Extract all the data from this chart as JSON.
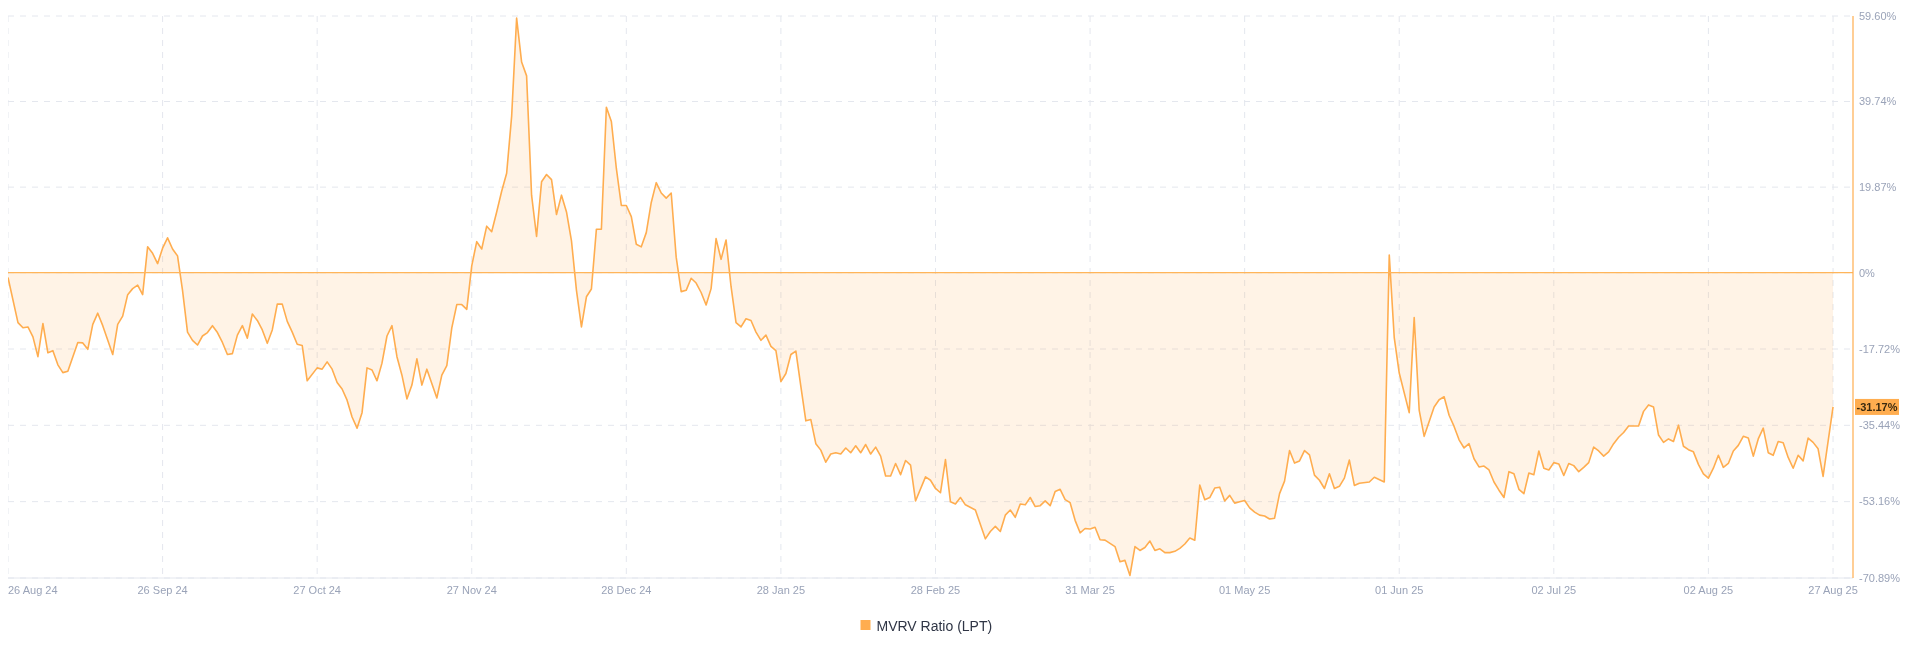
{
  "chart_data": {
    "type": "area",
    "xlim": [
      "2024-08-26",
      "2025-08-31"
    ],
    "xticks": [
      {
        "value": "2024-08-26",
        "label": "26 Aug 24"
      },
      {
        "value": "2024-09-26",
        "label": "26 Sep 24"
      },
      {
        "value": "2024-10-27",
        "label": "27 Oct 24"
      },
      {
        "value": "2024-11-27",
        "label": "27 Nov 24"
      },
      {
        "value": "2024-12-28",
        "label": "28 Dec 24"
      },
      {
        "value": "2025-01-28",
        "label": "28 Jan 25"
      },
      {
        "value": "2025-02-28",
        "label": "28 Feb 25"
      },
      {
        "value": "2025-03-31",
        "label": "31 Mar 25"
      },
      {
        "value": "2025-05-01",
        "label": "01 May 25"
      },
      {
        "value": "2025-06-01",
        "label": "01 Jun 25"
      },
      {
        "value": "2025-07-02",
        "label": "02 Jul 25"
      },
      {
        "value": "2025-08-02",
        "label": "02 Aug 25"
      },
      {
        "value": "2025-08-27",
        "label": "27 Aug 25"
      }
    ],
    "ylim": [
      -70.89,
      59.6
    ],
    "yticks": [
      {
        "value": -70.89,
        "label": "-70.89%"
      },
      {
        "value": -53.16,
        "label": "-53.16%"
      },
      {
        "value": -35.44,
        "label": "-35.44%"
      },
      {
        "value": -17.72,
        "label": "-17.72%"
      },
      {
        "value": 0,
        "label": "0%"
      },
      {
        "value": 19.87,
        "label": "19.87%"
      },
      {
        "value": 39.74,
        "label": "39.74%"
      },
      {
        "value": 59.6,
        "label": "59.60%"
      }
    ],
    "grid": true,
    "legend": "bottom",
    "ref_lines": [
      {
        "axis": "y",
        "value": 0,
        "color": "#ffb55a"
      }
    ],
    "annotations": [
      {
        "text": "-31.17%",
        "x": "2025-08-27",
        "y": -31.17
      }
    ],
    "series": [
      {
        "name": "MVRV Ratio (LPT)",
        "color": "#ffad4f",
        "x": [
          "2024-08-26",
          "2024-08-28",
          "2024-08-29",
          "2024-08-30",
          "2024-08-31",
          "2024-09-01",
          "2024-09-02",
          "2024-09-03",
          "2024-09-04",
          "2024-09-05",
          "2024-09-06",
          "2024-09-07",
          "2024-09-09",
          "2024-09-10",
          "2024-09-11",
          "2024-09-12",
          "2024-09-13",
          "2024-09-14",
          "2024-09-16",
          "2024-09-17",
          "2024-09-18",
          "2024-09-19",
          "2024-09-20",
          "2024-09-21",
          "2024-09-22",
          "2024-09-23",
          "2024-09-24",
          "2024-09-25",
          "2024-09-26",
          "2024-09-27",
          "2024-09-28",
          "2024-09-29",
          "2024-09-30",
          "2024-10-01",
          "2024-10-02",
          "2024-10-03",
          "2024-10-04",
          "2024-10-05",
          "2024-10-06",
          "2024-10-07",
          "2024-10-08",
          "2024-10-09",
          "2024-10-10",
          "2024-10-11",
          "2024-10-12",
          "2024-10-13",
          "2024-10-14",
          "2024-10-15",
          "2024-10-16",
          "2024-10-17",
          "2024-10-18",
          "2024-10-19",
          "2024-10-20",
          "2024-10-21",
          "2024-10-22",
          "2024-10-23",
          "2024-10-24",
          "2024-10-25",
          "2024-10-27",
          "2024-10-28",
          "2024-10-29",
          "2024-10-30",
          "2024-10-31",
          "2024-11-01",
          "2024-11-02",
          "2024-11-03",
          "2024-11-04",
          "2024-11-05",
          "2024-11-06",
          "2024-11-07",
          "2024-11-08",
          "2024-11-09",
          "2024-11-10",
          "2024-11-11",
          "2024-11-12",
          "2024-11-13",
          "2024-11-14",
          "2024-11-15",
          "2024-11-16",
          "2024-11-17",
          "2024-11-18",
          "2024-11-20",
          "2024-11-21",
          "2024-11-22",
          "2024-11-23",
          "2024-11-24",
          "2024-11-25",
          "2024-11-26",
          "2024-11-27",
          "2024-11-28",
          "2024-11-29",
          "2024-11-30",
          "2024-12-01",
          "2024-12-02",
          "2024-12-03",
          "2024-12-04",
          "2024-12-05",
          "2024-12-06",
          "2024-12-07",
          "2024-12-08",
          "2024-12-09",
          "2024-12-10",
          "2024-12-11",
          "2024-12-12",
          "2024-12-13",
          "2024-12-14",
          "2024-12-15",
          "2024-12-16",
          "2024-12-17",
          "2024-12-18",
          "2024-12-19",
          "2024-12-20",
          "2024-12-21",
          "2024-12-22",
          "2024-12-23",
          "2024-12-24",
          "2024-12-25",
          "2024-12-26",
          "2024-12-27",
          "2024-12-28",
          "2024-12-29",
          "2024-12-30",
          "2024-12-31",
          "2025-01-01",
          "2025-01-02",
          "2025-01-03",
          "2025-01-04",
          "2025-01-05",
          "2025-01-06",
          "2025-01-07",
          "2025-01-08",
          "2025-01-09",
          "2025-01-10",
          "2025-01-11",
          "2025-01-12",
          "2025-01-13",
          "2025-01-14",
          "2025-01-15",
          "2025-01-16",
          "2025-01-17",
          "2025-01-18",
          "2025-01-19",
          "2025-01-20",
          "2025-01-21",
          "2025-01-22",
          "2025-01-23",
          "2025-01-24",
          "2025-01-25",
          "2025-01-26",
          "2025-01-27",
          "2025-01-28",
          "2025-01-29",
          "2025-01-30",
          "2025-01-31",
          "2025-02-01",
          "2025-02-02",
          "2025-02-03",
          "2025-02-04",
          "2025-02-05",
          "2025-02-06",
          "2025-02-07",
          "2025-02-08",
          "2025-02-09",
          "2025-02-10",
          "2025-02-11",
          "2025-02-12",
          "2025-02-13",
          "2025-02-14",
          "2025-02-15",
          "2025-02-16",
          "2025-02-17",
          "2025-02-18",
          "2025-02-19",
          "2025-02-20",
          "2025-02-21",
          "2025-02-22",
          "2025-02-23",
          "2025-02-24",
          "2025-02-26",
          "2025-02-27",
          "2025-02-28",
          "2025-03-01",
          "2025-03-02",
          "2025-03-03",
          "2025-03-04",
          "2025-03-05",
          "2025-03-06",
          "2025-03-08",
          "2025-03-10",
          "2025-03-11",
          "2025-03-12",
          "2025-03-13",
          "2025-03-14",
          "2025-03-15",
          "2025-03-16",
          "2025-03-17",
          "2025-03-18",
          "2025-03-19",
          "2025-03-20",
          "2025-03-21",
          "2025-03-22",
          "2025-03-23",
          "2025-03-24",
          "2025-03-25",
          "2025-03-26",
          "2025-03-27",
          "2025-03-28",
          "2025-03-29",
          "2025-03-30",
          "2025-03-31",
          "2025-04-01",
          "2025-04-02",
          "2025-04-03",
          "2025-04-05",
          "2025-04-06",
          "2025-04-07",
          "2025-04-08",
          "2025-04-09",
          "2025-04-10",
          "2025-04-11",
          "2025-04-12",
          "2025-04-13",
          "2025-04-14",
          "2025-04-15",
          "2025-04-16",
          "2025-04-17",
          "2025-04-18",
          "2025-04-19",
          "2025-04-20",
          "2025-04-21",
          "2025-04-22",
          "2025-04-23",
          "2025-04-24",
          "2025-04-25",
          "2025-04-26",
          "2025-04-27",
          "2025-04-28",
          "2025-04-29",
          "2025-04-30",
          "2025-05-01",
          "2025-05-02",
          "2025-05-03",
          "2025-05-04",
          "2025-05-05",
          "2025-05-06",
          "2025-05-07",
          "2025-05-08",
          "2025-05-09",
          "2025-05-10",
          "2025-05-11",
          "2025-05-12",
          "2025-05-13",
          "2025-05-14",
          "2025-05-15",
          "2025-05-16",
          "2025-05-17",
          "2025-05-18",
          "2025-05-19",
          "2025-05-20",
          "2025-05-21",
          "2025-05-22",
          "2025-05-23",
          "2025-05-24",
          "2025-05-26",
          "2025-05-27",
          "2025-05-29",
          "2025-05-30",
          "2025-05-31",
          "2025-06-01",
          "2025-06-03",
          "2025-06-04",
          "2025-06-05",
          "2025-06-06",
          "2025-06-08",
          "2025-06-09",
          "2025-06-10",
          "2025-06-11",
          "2025-06-12",
          "2025-06-13",
          "2025-06-14",
          "2025-06-15",
          "2025-06-16",
          "2025-06-17",
          "2025-06-18",
          "2025-06-19",
          "2025-06-20",
          "2025-06-21",
          "2025-06-22",
          "2025-06-23",
          "2025-06-24",
          "2025-06-25",
          "2025-06-26",
          "2025-06-27",
          "2025-06-28",
          "2025-06-29",
          "2025-06-30",
          "2025-07-01",
          "2025-07-02",
          "2025-07-03",
          "2025-07-04",
          "2025-07-05",
          "2025-07-06",
          "2025-07-07",
          "2025-07-08",
          "2025-07-09",
          "2025-07-10",
          "2025-07-11",
          "2025-07-12",
          "2025-07-13",
          "2025-07-14",
          "2025-07-15",
          "2025-07-16",
          "2025-07-17",
          "2025-07-18",
          "2025-07-19",
          "2025-07-20",
          "2025-07-21",
          "2025-07-22",
          "2025-07-23",
          "2025-07-24",
          "2025-07-25",
          "2025-07-26",
          "2025-07-27",
          "2025-07-28",
          "2025-07-29",
          "2025-07-30",
          "2025-07-31",
          "2025-08-01",
          "2025-08-02",
          "2025-08-03",
          "2025-08-04",
          "2025-08-05",
          "2025-08-06",
          "2025-08-07",
          "2025-08-08",
          "2025-08-09",
          "2025-08-10",
          "2025-08-11",
          "2025-08-12",
          "2025-08-13",
          "2025-08-14",
          "2025-08-15",
          "2025-08-16",
          "2025-08-17",
          "2025-08-18",
          "2025-08-19",
          "2025-08-20",
          "2025-08-21",
          "2025-08-22",
          "2025-08-23",
          "2025-08-24",
          "2025-08-25",
          "2025-08-27"
        ],
        "values": [
          -1.1,
          -11.6,
          -12.8,
          -12.6,
          -14.9,
          -19.5,
          -11.8,
          -18.6,
          -18.1,
          -21.4,
          -23.2,
          -22.9,
          -16.2,
          -16.3,
          -17.8,
          -12.0,
          -9.4,
          -12.3,
          -19.0,
          -12.0,
          -10.1,
          -5.1,
          -3.7,
          -2.9,
          -5.1,
          6.0,
          4.5,
          2.1,
          5.7,
          8.1,
          5.5,
          3.9,
          -4.1,
          -13.8,
          -15.7,
          -16.8,
          -14.7,
          -13.9,
          -12.3,
          -13.9,
          -16.2,
          -19.0,
          -18.8,
          -14.5,
          -12.3,
          -15.2,
          -9.6,
          -11.1,
          -13.3,
          -16.4,
          -13.3,
          -7.3,
          -7.3,
          -11.3,
          -13.8,
          -16.6,
          -16.9,
          -25.1,
          -22.1,
          -22.4,
          -20.7,
          -22.4,
          -25.5,
          -27.0,
          -29.6,
          -33.5,
          -36.1,
          -32.5,
          -22.1,
          -22.6,
          -25.1,
          -21.0,
          -14.7,
          -12.3,
          -19.5,
          -23.8,
          -29.3,
          -26.1,
          -20.0,
          -26.1,
          -22.4,
          -29.1,
          -23.8,
          -21.6,
          -12.8,
          -7.4,
          -7.4,
          -8.5,
          1.6,
          7.2,
          5.5,
          10.8,
          9.5,
          14.1,
          18.9,
          23.1,
          36.3,
          59.1,
          48.9,
          45.7,
          18.0,
          8.4,
          21.1,
          22.8,
          21.6,
          13.5,
          18.0,
          14.1,
          7.4,
          -4.1,
          -12.6,
          -5.6,
          -3.8,
          10.1,
          10.1,
          38.4,
          35.1,
          24.2,
          15.6,
          15.6,
          13.0,
          6.6,
          6.0,
          9.3,
          16.3,
          20.9,
          18.5,
          17.3,
          18.5,
          3.6,
          -4.4,
          -4.1,
          -1.3,
          -2.4,
          -4.6,
          -7.5,
          -3.7,
          7.9,
          3.1,
          7.6,
          -3.2,
          -11.6,
          -12.6,
          -10.7,
          -11.1,
          -13.8,
          -15.7,
          -14.5,
          -17.1,
          -18.1,
          -25.3,
          -23.4,
          -19.0,
          -18.2,
          -26.4,
          -34.4,
          -34.1,
          -39.7,
          -41.2,
          -44.0,
          -42.1,
          -41.8,
          -42.1,
          -40.7,
          -41.8,
          -40.2,
          -41.8,
          -39.9,
          -42.1,
          -40.5,
          -42.6,
          -47.2,
          -47.2,
          -44.3,
          -46.9,
          -43.6,
          -44.7,
          -53.0,
          -47.4,
          -48.2,
          -50.1,
          -51.1,
          -43.4,
          -53.2,
          -53.7,
          -52.2,
          -53.9,
          -55.1,
          -61.8,
          -60.1,
          -58.9,
          -60.1,
          -56.3,
          -55.1,
          -56.8,
          -53.7,
          -53.9,
          -52.2,
          -54.3,
          -54.1,
          -53.0,
          -54.1,
          -50.8,
          -50.3,
          -52.7,
          -53.4,
          -57.5,
          -60.4,
          -59.4,
          -59.5,
          -59.1,
          -62.0,
          -62.1,
          -63.6,
          -67.1,
          -66.8,
          -70.3,
          -63.6,
          -64.5,
          -63.8,
          -62.3,
          -64.5,
          -64.1,
          -65.0,
          -65.0,
          -64.7,
          -64.0,
          -63.0,
          -61.6,
          -62.1,
          -49.3,
          -52.7,
          -52.2,
          -50.0,
          -49.8,
          -53.0,
          -51.7,
          -53.5,
          -53.2,
          -52.9,
          -54.6,
          -55.6,
          -56.3,
          -56.5,
          -57.2,
          -57.0,
          -51.3,
          -48.4,
          -41.3,
          -44.2,
          -43.7,
          -41.3,
          -42.3,
          -47.0,
          -48.2,
          -50.1,
          -46.7,
          -50.1,
          -49.6,
          -47.7,
          -43.5,
          -49.4,
          -48.9,
          -48.6,
          -47.5,
          -48.6,
          4.1,
          -15.1,
          -23.3,
          -32.5,
          -10.4,
          -31.9,
          -38.0,
          -31.2,
          -29.5,
          -28.8,
          -33.1,
          -35.7,
          -38.8,
          -40.7,
          -39.7,
          -43.2,
          -45.1,
          -44.9,
          -45.8,
          -48.6,
          -50.5,
          -52.2,
          -46.2,
          -46.7,
          -50.3,
          -51.3,
          -46.5,
          -46.9,
          -41.4,
          -45.4,
          -45.8,
          -44.1,
          -44.4,
          -47.1,
          -44.3,
          -44.8,
          -46.2,
          -45.2,
          -44.1,
          -40.5,
          -41.4,
          -42.6,
          -41.6,
          -39.7,
          -38.2,
          -37.1,
          -35.6,
          -35.6,
          -35.6,
          -32.2,
          -30.7,
          -31.2,
          -37.7,
          -39.4,
          -38.6,
          -39.2,
          -35.4,
          -40.3,
          -41.1,
          -41.6,
          -44.5,
          -46.7,
          -47.7,
          -45.4,
          -42.4,
          -45.2,
          -44.3,
          -41.4,
          -40.1,
          -38.0,
          -38.4,
          -42.6,
          -38.6,
          -36.1,
          -41.8,
          -42.4,
          -39.2,
          -39.5,
          -42.9,
          -45.4,
          -42.4,
          -43.7,
          -38.4,
          -39.4,
          -40.9,
          -47.3,
          -31.17
        ]
      }
    ]
  }
}
